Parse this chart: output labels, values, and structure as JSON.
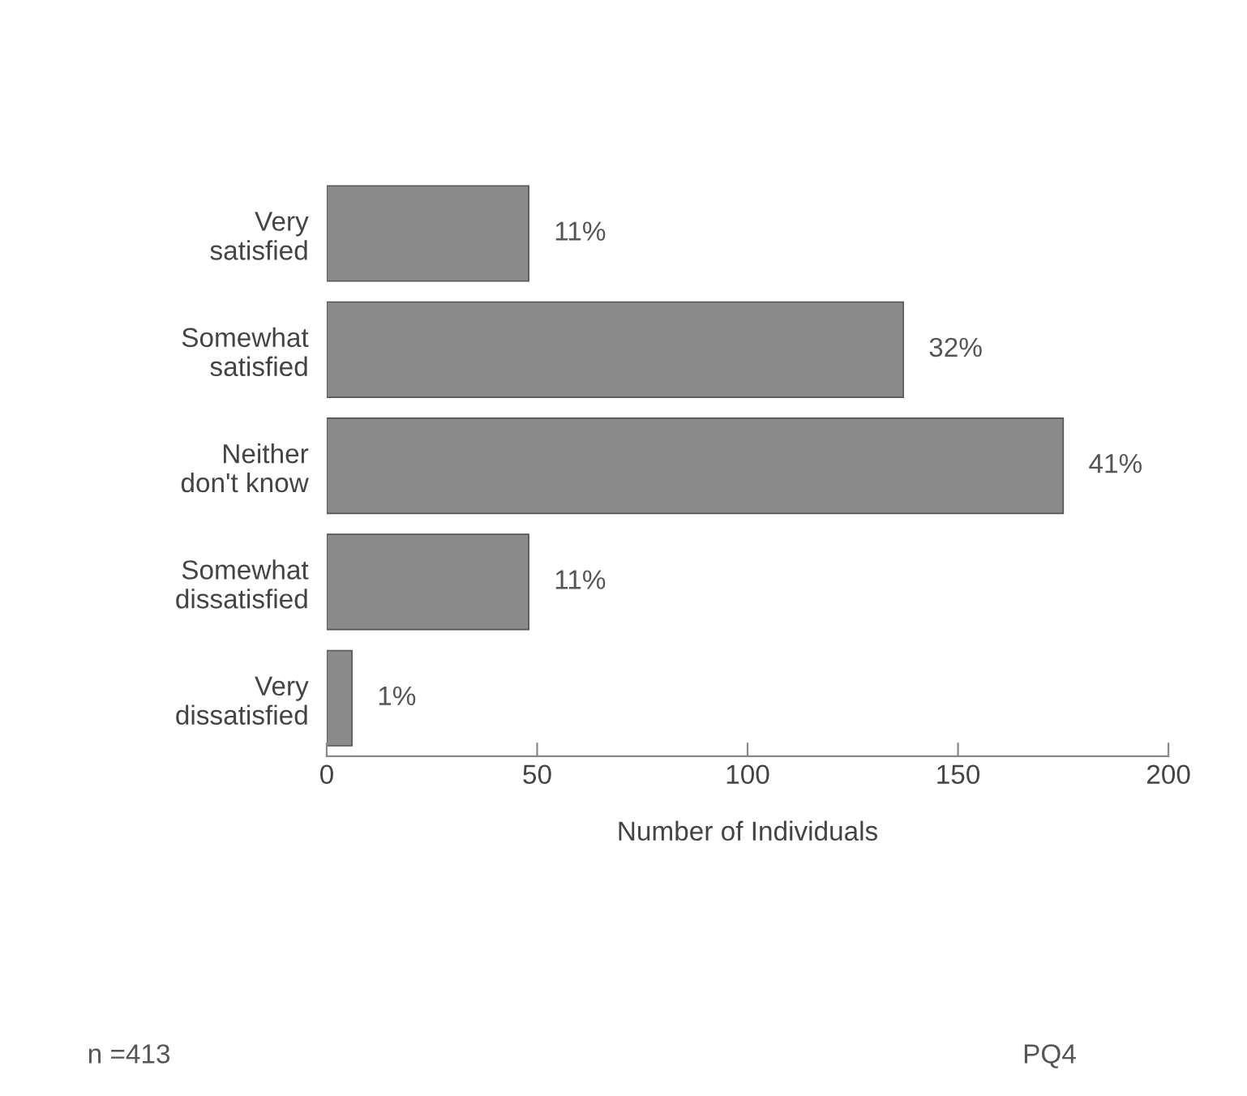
{
  "chart_data": {
    "type": "bar",
    "orientation": "horizontal",
    "xlabel": "Number of Individuals",
    "categories": [
      "Very\nsatisfied",
      "Somewhat\nsatisfied",
      "Neither\ndon't know",
      "Somewhat\ndissatisfied",
      "Very\ndissatisfied"
    ],
    "values": [
      48,
      137,
      175,
      48,
      6
    ],
    "color": "#8a8a8a",
    "xlim": [
      0,
      200
    ],
    "xticks": [
      0,
      50,
      100,
      150,
      200
    ],
    "grid": false,
    "annotations": [
      {
        "text": "11%",
        "x": 48,
        "y": "Very\nsatisfied"
      },
      {
        "text": "32%",
        "x": 137,
        "y": "Somewhat\nsatisfied"
      },
      {
        "text": "41%",
        "x": 175,
        "y": "Neither\ndon't know"
      },
      {
        "text": "11%",
        "x": 48,
        "y": "Somewhat\ndissatisfied"
      },
      {
        "text": "1%",
        "x": 6,
        "y": "Very\ndissatisfied"
      },
      "n =413",
      "PQ4"
    ]
  }
}
